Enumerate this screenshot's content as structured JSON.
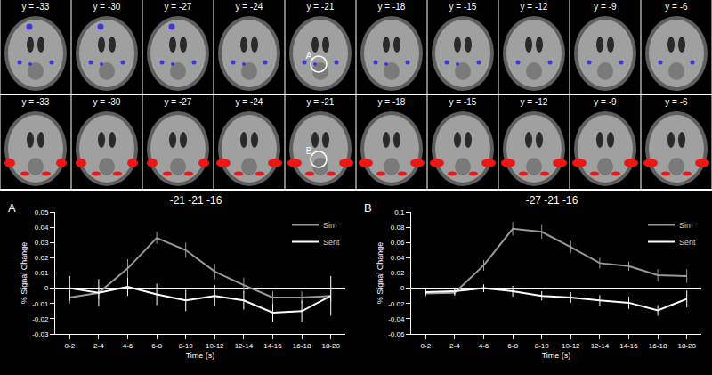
{
  "slices": {
    "labels": [
      "y = -33",
      "y = -30",
      "y = -27",
      "y = -24",
      "y = -21",
      "y = -18",
      "y = -15",
      "y = -12",
      "y = -9",
      "y = -6"
    ],
    "rows": [
      {
        "color": "#3a3ad6",
        "marker": {
          "slice": "y = -21",
          "label": "A"
        }
      },
      {
        "color": "#ee1515",
        "marker": {
          "slice": "y = -21",
          "label": "B"
        }
      }
    ]
  },
  "chart_data": [
    {
      "type": "line",
      "panel": "A",
      "title": "-21 -21 -16",
      "x_label": "Time (s)",
      "y_label": "% Signal Change",
      "categories": [
        "0-2",
        "2-4",
        "4-6",
        "6-8",
        "8-10",
        "10-12",
        "12-14",
        "14-16",
        "16-18",
        "18-20"
      ],
      "ylim": [
        -0.03,
        0.05
      ],
      "yticks": [
        -0.03,
        -0.02,
        -0.01,
        0,
        0.01,
        0.02,
        0.03,
        0.04,
        0.05
      ],
      "legend": "top right",
      "series": [
        {
          "name": "Sim",
          "color": "#999999",
          "values": [
            -0.006,
            -0.003,
            0.013,
            0.033,
            0.025,
            0.011,
            0.002,
            -0.006,
            -0.006,
            -0.005
          ],
          "errors": [
            0.004,
            0.004,
            0.006,
            0.004,
            0.005,
            0.005,
            0.005,
            0.004,
            0.004,
            0.004
          ]
        },
        {
          "name": "Sent",
          "color": "#ffffff",
          "values": [
            0.0,
            -0.003,
            0.001,
            -0.004,
            -0.008,
            -0.005,
            -0.008,
            -0.016,
            -0.015,
            -0.005
          ],
          "errors": [
            0.008,
            0.009,
            0.006,
            0.007,
            0.007,
            0.007,
            0.006,
            0.006,
            0.007,
            0.013
          ]
        }
      ]
    },
    {
      "type": "line",
      "panel": "B",
      "title": "-27 -21 -16",
      "x_label": "Time (s)",
      "y_label": "% Signal Change",
      "categories": [
        "0-2",
        "2-4",
        "4-6",
        "6-8",
        "8-10",
        "10-12",
        "12-14",
        "14-16",
        "16-18",
        "18-20"
      ],
      "ylim": [
        -0.06,
        0.1
      ],
      "yticks": [
        -0.06,
        -0.04,
        -0.02,
        0,
        0.02,
        0.04,
        0.06,
        0.08,
        0.1
      ],
      "legend": "top right",
      "series": [
        {
          "name": "Sim",
          "color": "#999999",
          "values": [
            -0.007,
            -0.006,
            0.03,
            0.078,
            0.074,
            0.054,
            0.033,
            0.029,
            0.017,
            0.016
          ],
          "errors": [
            0.004,
            0.004,
            0.007,
            0.009,
            0.009,
            0.008,
            0.007,
            0.006,
            0.008,
            0.009
          ]
        },
        {
          "name": "Sent",
          "color": "#ffffff",
          "values": [
            -0.005,
            -0.004,
            0.0,
            -0.004,
            -0.01,
            -0.012,
            -0.016,
            -0.019,
            -0.029,
            -0.014
          ],
          "errors": [
            0.004,
            0.005,
            0.005,
            0.007,
            0.006,
            0.007,
            0.007,
            0.008,
            0.007,
            0.011
          ]
        }
      ]
    }
  ]
}
